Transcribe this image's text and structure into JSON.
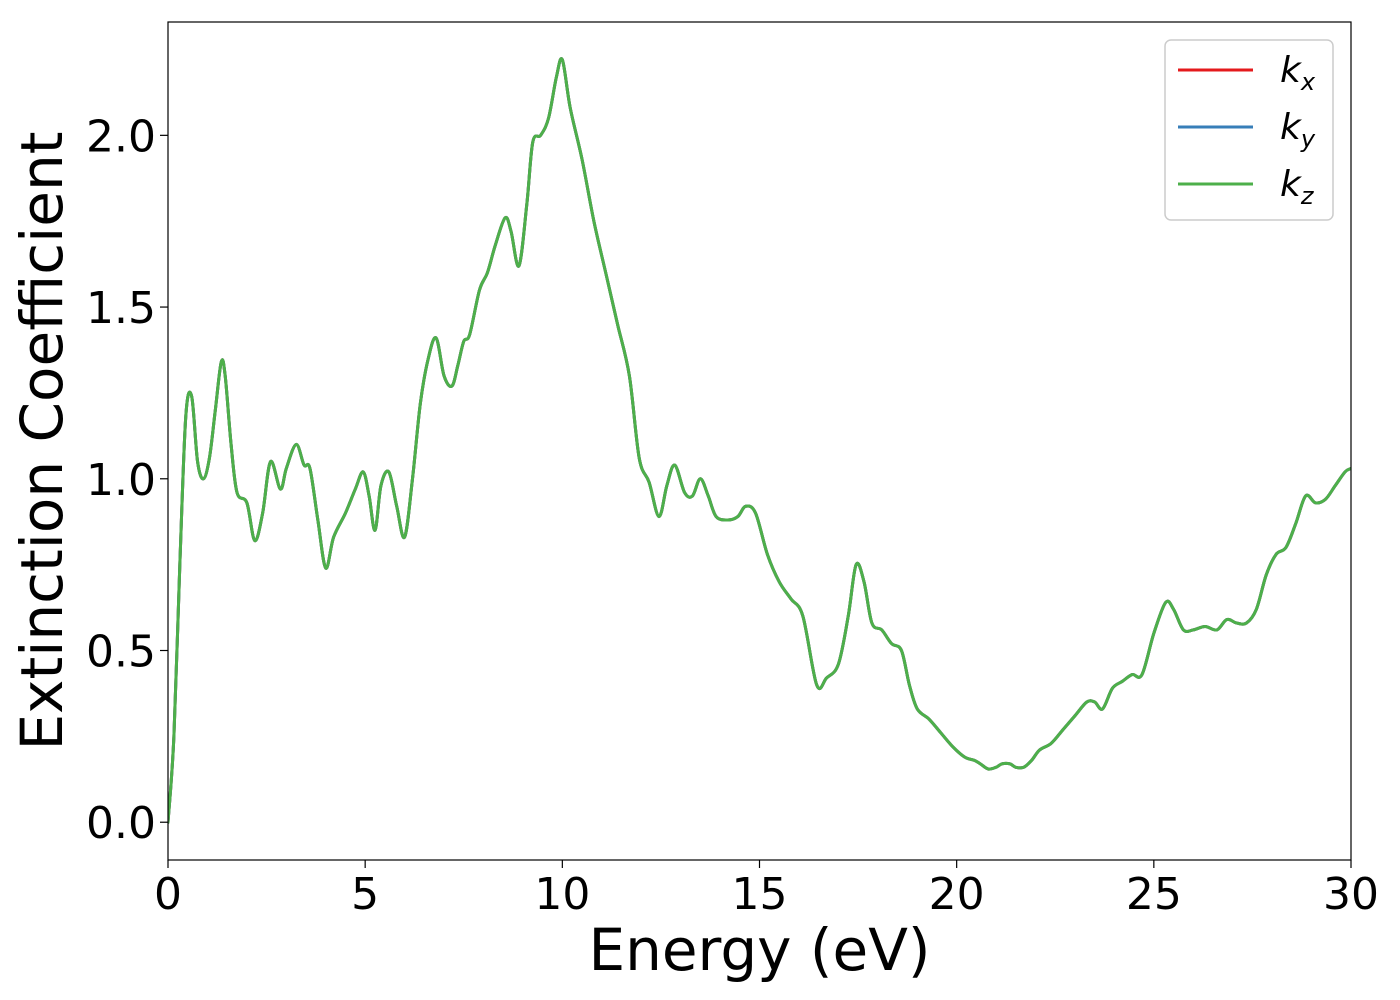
{
  "chart_data": {
    "type": "line",
    "title": "",
    "xlabel": "Energy (eV)",
    "ylabel": "Extinction Coefficient",
    "xlim": [
      0,
      30
    ],
    "ylim": [
      -0.11,
      2.33
    ],
    "xticks": [
      0,
      5,
      10,
      15,
      20,
      25,
      30
    ],
    "xtick_labels": [
      "0",
      "5",
      "10",
      "15",
      "20",
      "25",
      "30"
    ],
    "yticks": [
      0.0,
      0.5,
      1.0,
      1.5,
      2.0
    ],
    "ytick_labels": [
      "0.0",
      "0.5",
      "1.0",
      "1.5",
      "2.0"
    ],
    "grid": false,
    "legend_position": "top-right",
    "x": [
      0.0,
      0.15,
      0.3,
      0.45,
      0.6,
      0.75,
      0.9,
      1.05,
      1.2,
      1.35,
      1.45,
      1.6,
      1.75,
      2.0,
      2.2,
      2.4,
      2.6,
      2.85,
      3.0,
      3.25,
      3.45,
      3.6,
      3.8,
      4.0,
      4.2,
      4.5,
      4.75,
      4.95,
      5.1,
      5.25,
      5.4,
      5.6,
      5.8,
      6.0,
      6.2,
      6.4,
      6.6,
      6.8,
      7.0,
      7.2,
      7.35,
      7.5,
      7.65,
      7.9,
      8.1,
      8.3,
      8.55,
      8.7,
      8.9,
      9.1,
      9.25,
      9.45,
      9.65,
      9.85,
      10.0,
      10.2,
      10.5,
      10.8,
      11.1,
      11.4,
      11.7,
      11.95,
      12.2,
      12.45,
      12.65,
      12.85,
      13.1,
      13.3,
      13.5,
      13.7,
      13.9,
      14.2,
      14.45,
      14.65,
      14.9,
      15.2,
      15.5,
      15.8,
      16.1,
      16.45,
      16.7,
      17.0,
      17.25,
      17.45,
      17.65,
      17.85,
      18.1,
      18.35,
      18.6,
      18.8,
      19.0,
      19.3,
      19.6,
      19.9,
      20.2,
      20.45,
      20.6,
      20.8,
      21.0,
      21.15,
      21.35,
      21.5,
      21.7,
      21.9,
      22.1,
      22.4,
      22.7,
      23.0,
      23.3,
      23.5,
      23.7,
      23.95,
      24.2,
      24.45,
      24.7,
      25.0,
      25.3,
      25.5,
      25.75,
      26.0,
      26.3,
      26.6,
      26.85,
      27.1,
      27.35,
      27.6,
      27.85,
      28.1,
      28.35,
      28.6,
      28.85,
      29.1,
      29.35,
      29.6,
      29.85,
      30.0
    ],
    "series": [
      {
        "name": "k_x",
        "color": "#e41a1c",
        "y": [
          0.0,
          0.25,
          0.75,
          1.18,
          1.24,
          1.05,
          1.0,
          1.06,
          1.2,
          1.34,
          1.3,
          1.1,
          0.96,
          0.93,
          0.82,
          0.9,
          1.05,
          0.97,
          1.03,
          1.1,
          1.04,
          1.03,
          0.88,
          0.74,
          0.83,
          0.9,
          0.97,
          1.02,
          0.95,
          0.85,
          0.98,
          1.02,
          0.92,
          0.83,
          1.0,
          1.22,
          1.35,
          1.41,
          1.3,
          1.27,
          1.33,
          1.4,
          1.42,
          1.55,
          1.6,
          1.68,
          1.76,
          1.72,
          1.62,
          1.8,
          1.98,
          2.0,
          2.05,
          2.17,
          2.22,
          2.08,
          1.93,
          1.75,
          1.6,
          1.45,
          1.3,
          1.06,
          0.99,
          0.89,
          0.98,
          1.04,
          0.96,
          0.95,
          1.0,
          0.95,
          0.89,
          0.88,
          0.89,
          0.92,
          0.9,
          0.78,
          0.7,
          0.65,
          0.6,
          0.4,
          0.42,
          0.46,
          0.6,
          0.75,
          0.7,
          0.58,
          0.56,
          0.52,
          0.5,
          0.4,
          0.33,
          0.3,
          0.26,
          0.22,
          0.19,
          0.18,
          0.17,
          0.155,
          0.16,
          0.17,
          0.17,
          0.16,
          0.16,
          0.18,
          0.21,
          0.23,
          0.27,
          0.31,
          0.35,
          0.35,
          0.33,
          0.39,
          0.41,
          0.43,
          0.43,
          0.55,
          0.64,
          0.62,
          0.56,
          0.56,
          0.57,
          0.56,
          0.59,
          0.58,
          0.58,
          0.62,
          0.72,
          0.78,
          0.8,
          0.87,
          0.95,
          0.93,
          0.94,
          0.98,
          1.02,
          1.03
        ]
      },
      {
        "name": "k_y",
        "color": "#377eb8",
        "y": [
          0.0,
          0.25,
          0.75,
          1.18,
          1.24,
          1.05,
          1.0,
          1.06,
          1.2,
          1.34,
          1.3,
          1.1,
          0.96,
          0.93,
          0.82,
          0.9,
          1.05,
          0.97,
          1.03,
          1.1,
          1.04,
          1.03,
          0.88,
          0.74,
          0.83,
          0.9,
          0.97,
          1.02,
          0.95,
          0.85,
          0.98,
          1.02,
          0.92,
          0.83,
          1.0,
          1.22,
          1.35,
          1.41,
          1.3,
          1.27,
          1.33,
          1.4,
          1.42,
          1.55,
          1.6,
          1.68,
          1.76,
          1.72,
          1.62,
          1.8,
          1.98,
          2.0,
          2.05,
          2.17,
          2.22,
          2.08,
          1.93,
          1.75,
          1.6,
          1.45,
          1.3,
          1.06,
          0.99,
          0.89,
          0.98,
          1.04,
          0.96,
          0.95,
          1.0,
          0.95,
          0.89,
          0.88,
          0.89,
          0.92,
          0.9,
          0.78,
          0.7,
          0.65,
          0.6,
          0.4,
          0.42,
          0.46,
          0.6,
          0.75,
          0.7,
          0.58,
          0.56,
          0.52,
          0.5,
          0.4,
          0.33,
          0.3,
          0.26,
          0.22,
          0.19,
          0.18,
          0.17,
          0.155,
          0.16,
          0.17,
          0.17,
          0.16,
          0.16,
          0.18,
          0.21,
          0.23,
          0.27,
          0.31,
          0.35,
          0.35,
          0.33,
          0.39,
          0.41,
          0.43,
          0.43,
          0.55,
          0.64,
          0.62,
          0.56,
          0.56,
          0.57,
          0.56,
          0.59,
          0.58,
          0.58,
          0.62,
          0.72,
          0.78,
          0.8,
          0.87,
          0.95,
          0.93,
          0.94,
          0.98,
          1.02,
          1.03
        ]
      },
      {
        "name": "k_z",
        "color": "#4daf4a",
        "y": [
          0.0,
          0.25,
          0.75,
          1.18,
          1.24,
          1.05,
          1.0,
          1.06,
          1.2,
          1.34,
          1.3,
          1.1,
          0.96,
          0.93,
          0.82,
          0.9,
          1.05,
          0.97,
          1.03,
          1.1,
          1.04,
          1.03,
          0.88,
          0.74,
          0.83,
          0.9,
          0.97,
          1.02,
          0.95,
          0.85,
          0.98,
          1.02,
          0.92,
          0.83,
          1.0,
          1.22,
          1.35,
          1.41,
          1.3,
          1.27,
          1.33,
          1.4,
          1.42,
          1.55,
          1.6,
          1.68,
          1.76,
          1.72,
          1.62,
          1.8,
          1.98,
          2.0,
          2.05,
          2.17,
          2.22,
          2.08,
          1.93,
          1.75,
          1.6,
          1.45,
          1.3,
          1.06,
          0.99,
          0.89,
          0.98,
          1.04,
          0.96,
          0.95,
          1.0,
          0.95,
          0.89,
          0.88,
          0.89,
          0.92,
          0.9,
          0.78,
          0.7,
          0.65,
          0.6,
          0.4,
          0.42,
          0.46,
          0.6,
          0.75,
          0.7,
          0.58,
          0.56,
          0.52,
          0.5,
          0.4,
          0.33,
          0.3,
          0.26,
          0.22,
          0.19,
          0.18,
          0.17,
          0.155,
          0.16,
          0.17,
          0.17,
          0.16,
          0.16,
          0.18,
          0.21,
          0.23,
          0.27,
          0.31,
          0.35,
          0.35,
          0.33,
          0.39,
          0.41,
          0.43,
          0.43,
          0.55,
          0.64,
          0.62,
          0.56,
          0.56,
          0.57,
          0.56,
          0.59,
          0.58,
          0.58,
          0.62,
          0.72,
          0.78,
          0.8,
          0.87,
          0.95,
          0.93,
          0.94,
          0.98,
          1.02,
          1.03
        ]
      }
    ],
    "legend": [
      {
        "base": "k",
        "sub": "x"
      },
      {
        "base": "k",
        "sub": "y"
      },
      {
        "base": "k",
        "sub": "z"
      }
    ]
  }
}
